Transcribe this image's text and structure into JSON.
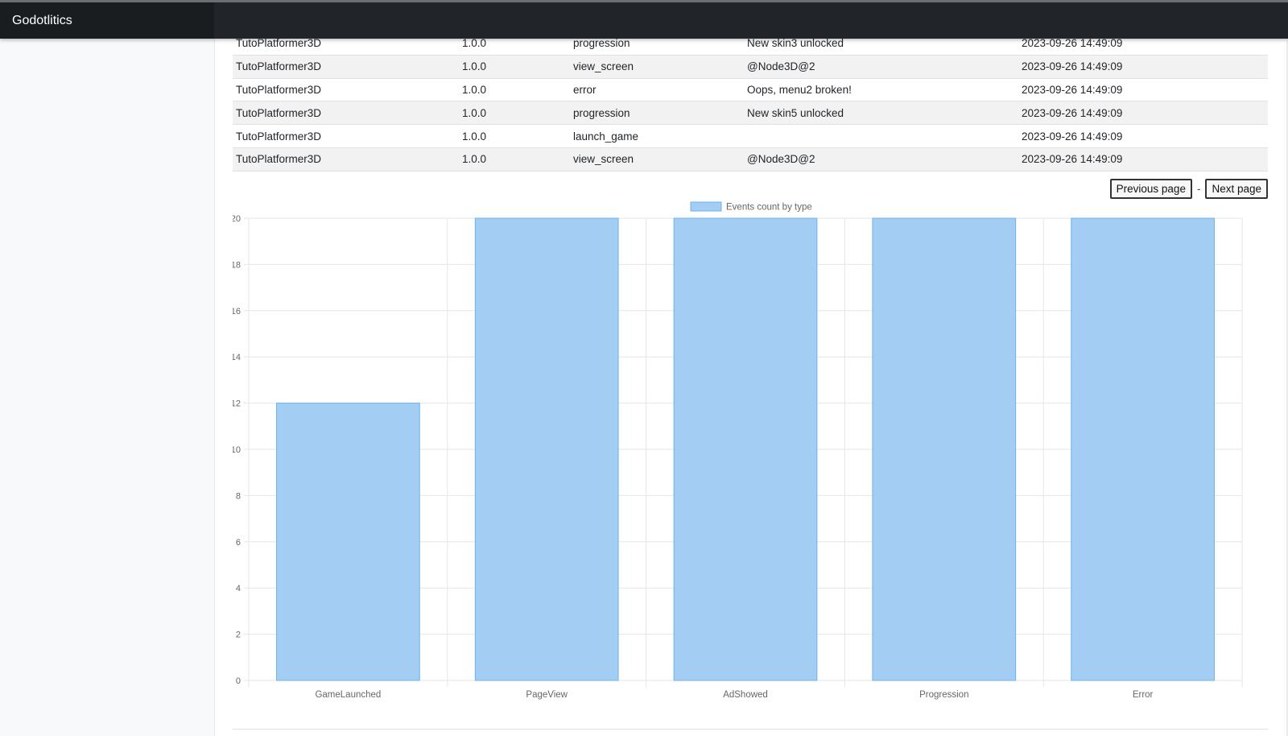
{
  "app": {
    "brand": "Godotlitics"
  },
  "events_table": {
    "rows": [
      {
        "app": "TutoPlatformer3D",
        "version": "1.0.0",
        "event": "progression",
        "detail": "New skin3 unlocked",
        "timestamp": "2023-09-26 14:49:09"
      },
      {
        "app": "TutoPlatformer3D",
        "version": "1.0.0",
        "event": "view_screen",
        "detail": "@Node3D@2",
        "timestamp": "2023-09-26 14:49:09"
      },
      {
        "app": "TutoPlatformer3D",
        "version": "1.0.0",
        "event": "error",
        "detail": "Oops, menu2 broken!",
        "timestamp": "2023-09-26 14:49:09"
      },
      {
        "app": "TutoPlatformer3D",
        "version": "1.0.0",
        "event": "progression",
        "detail": "New skin5 unlocked",
        "timestamp": "2023-09-26 14:49:09"
      },
      {
        "app": "TutoPlatformer3D",
        "version": "1.0.0",
        "event": "launch_game",
        "detail": "",
        "timestamp": "2023-09-26 14:49:09"
      },
      {
        "app": "TutoPlatformer3D",
        "version": "1.0.0",
        "event": "view_screen",
        "detail": "@Node3D@2",
        "timestamp": "2023-09-26 14:49:09"
      }
    ]
  },
  "pager": {
    "previous_label": "Previous page",
    "separator": "-",
    "next_label": "Next page"
  },
  "chart_data": {
    "type": "bar",
    "categories": [
      "GameLaunched",
      "PageView",
      "AdShowed",
      "Progression",
      "Error"
    ],
    "series": [
      {
        "name": "Events count by type",
        "values": [
          12,
          20,
          20,
          20,
          20
        ]
      }
    ],
    "ylim": [
      0,
      20
    ],
    "yticks": [
      0,
      2,
      4,
      6,
      8,
      10,
      12,
      14,
      16,
      18,
      20
    ],
    "grid": true,
    "legend_position": "top",
    "colors": {
      "bar_fill": "#a3cdf2",
      "bar_stroke": "#6cb2eb",
      "grid": "#e6e6e6",
      "tick_text": "#666666"
    }
  }
}
